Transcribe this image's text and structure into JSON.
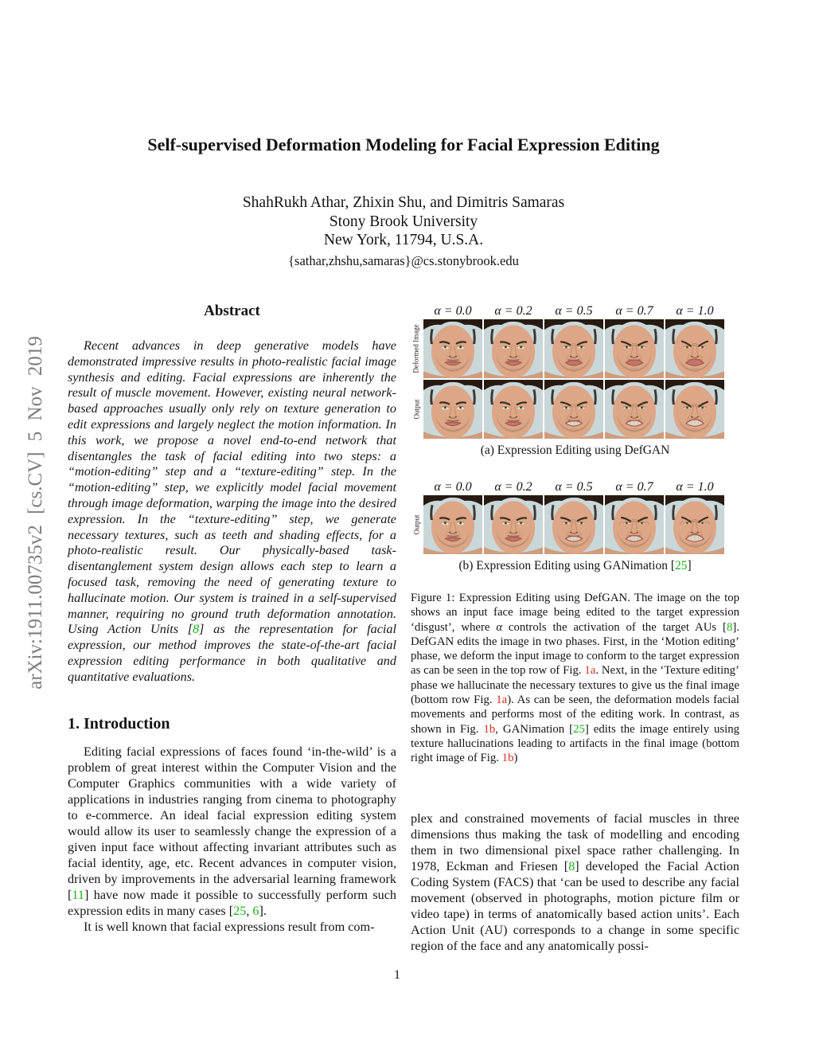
{
  "page": {
    "arxiv_watermark": "arXiv:1911.00735v2 [cs.CV] 5 Nov 2019",
    "number": "1"
  },
  "colors": {
    "citation_green": "#19b219",
    "figure_ref_red": "#cf2e22",
    "watermark_gray": "#7e7e7e",
    "face_background": "#c9d7d9"
  },
  "header": {
    "title": "Self-supervised Deformation Modeling for Facial Expression Editing",
    "authors": "ShahRukh Athar, Zhixin Shu, and Dimitris Samaras",
    "affiliation": "Stony Brook University",
    "location": "New York, 11794, U.S.A.",
    "email": "{sathar,zhshu,samaras}@cs.stonybrook.edu"
  },
  "abstract": {
    "heading": "Abstract",
    "body": [
      {
        "t": "Recent advances in deep generative models have demonstrated impressive results in photo-realistic facial image synthesis and editing. Facial expressions are inherently the result of muscle movement. However, existing neural network-based approaches usually only rely on texture generation to edit expressions and largely neglect the motion information. In this work, we propose a novel end-to-end network that disentangles the task of facial editing into two steps: a “motion-editing” step and a “texture-editing” step. In the “motion-editing” step, we explicitly model facial movement through image deformation, warping the image into the desired expression. In the “texture-editing” step, we generate necessary textures, such as teeth and shading effects, for a photo-realistic result. Our physically-based task-disentanglement system design allows each step to learn a focused task, removing the need of generating texture to hallucinate motion. Our system is trained in a self-supervised manner, requiring no ground truth deformation annotation. Using Action Units ["
      },
      {
        "t": "8",
        "c": "green"
      },
      {
        "t": "] as the representation for facial expression, our method improves the state-of-the-art facial expression editing performance in both qualitative and quantitative evaluations."
      }
    ]
  },
  "introduction": {
    "heading": "1. Introduction",
    "para1": [
      {
        "t": "Editing facial expressions of faces found ‘in-the-wild’ is a problem of great interest within the Computer Vision and the Computer Graphics communities with a wide variety of applications in industries ranging from cinema to photography to e-commerce. An ideal facial expression editing system would allow its user to seamlessly change the expression of a given input face without affecting invariant attributes such as facial identity, age, etc. Recent advances in computer vision, driven by improvements in the adversarial learning framework ["
      },
      {
        "t": "11",
        "c": "green"
      },
      {
        "t": "] have now made it possible to successfully perform such expression edits in many cases ["
      },
      {
        "t": "25",
        "c": "green"
      },
      {
        "t": ", "
      },
      {
        "t": "6",
        "c": "green"
      },
      {
        "t": "]."
      }
    ],
    "para2": [
      {
        "t": "It is well known that facial expressions result from com-"
      }
    ]
  },
  "figure1": {
    "alpha_labels": [
      "α = 0.0",
      "α = 0.2",
      "α = 0.5",
      "α = 0.7",
      "α = 1.0"
    ],
    "alphas": [
      0.0,
      0.2,
      0.5,
      0.7,
      1.0
    ],
    "sub_a": {
      "rows": [
        {
          "label": "Deformed Image",
          "style": "deformed"
        },
        {
          "label": "Output",
          "style": "output"
        }
      ],
      "caption": [
        {
          "t": "(a) Expression Editing using DefGAN"
        }
      ]
    },
    "sub_b": {
      "rows": [
        {
          "label": "Output",
          "style": "ganimation"
        }
      ],
      "caption": [
        {
          "t": "(b) Expression Editing using GANimation ["
        },
        {
          "t": "25",
          "c": "green"
        },
        {
          "t": "]"
        }
      ]
    },
    "caption_label": "Figure 1:",
    "caption": [
      {
        "t": " Expression Editing using DefGAN. The image on the top shows an input face image being edited to the target expression ‘disgust’, where "
      },
      {
        "t": "α",
        "i": true
      },
      {
        "t": " controls the activation of the target AUs ["
      },
      {
        "t": "8",
        "c": "green"
      },
      {
        "t": "]. DefGAN edits the image in two phases. First, in the ‘Motion editing’ phase, we deform the input image to conform to the target expression as can be seen in the top row of Fig. "
      },
      {
        "t": "1a",
        "c": "red"
      },
      {
        "t": ". Next, in the ‘Texture editing’ phase we hallucinate the necessary textures to give us the final image (bottom row Fig. "
      },
      {
        "t": "1a",
        "c": "red"
      },
      {
        "t": "). As can be seen, the deformation models facial movements and performs most of the editing work. In contrast, as shown in Fig. "
      },
      {
        "t": "1b",
        "c": "red"
      },
      {
        "t": ", GANimation ["
      },
      {
        "t": "25",
        "c": "green"
      },
      {
        "t": "] edits the image entirely using texture hallucinations leading to artifacts in the final image (bottom right image of Fig. "
      },
      {
        "t": "1b",
        "c": "red"
      },
      {
        "t": ")"
      }
    ]
  },
  "right_column": {
    "para": [
      {
        "t": "plex and constrained movements of facial muscles in three dimensions thus making the task of modelling and encoding them in two dimensional pixel space rather challenging. In 1978, Eckman and Friesen ["
      },
      {
        "t": "8",
        "c": "green"
      },
      {
        "t": "] developed the Facial Action Coding System (FACS) that ‘can be used to describe any facial movement (observed in photographs, motion picture film or video tape) in terms of anatomically based action units’. Each Action Unit (AU) corresponds to a change in some specific region of the face and any anatomically possi-"
      }
    ]
  }
}
